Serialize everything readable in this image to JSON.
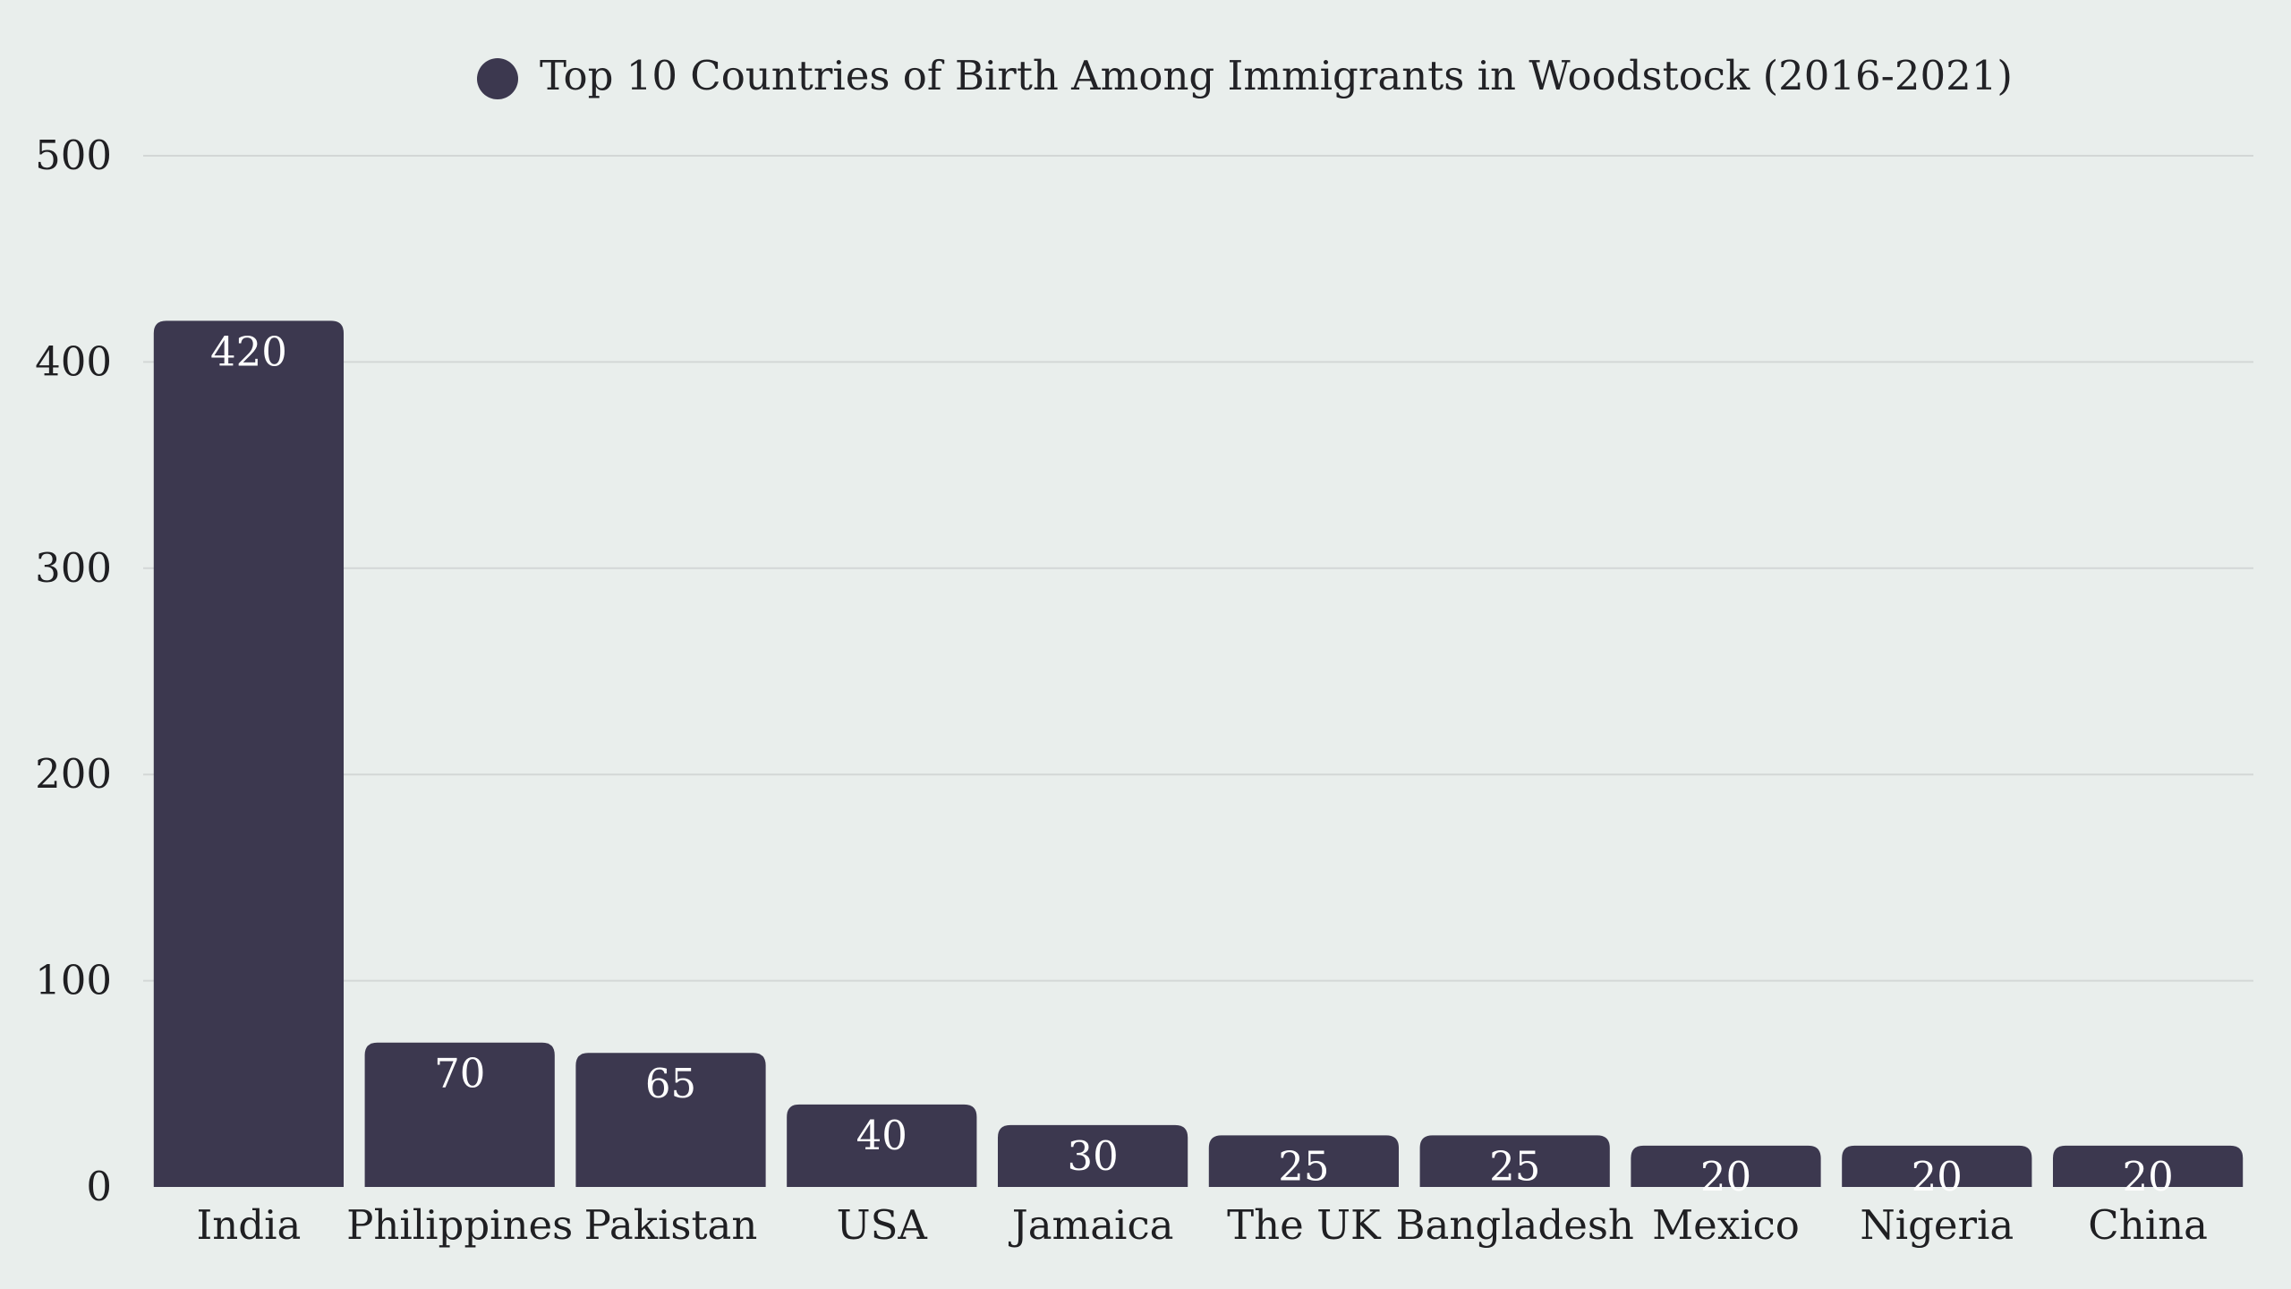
{
  "chart_data": {
    "type": "bar",
    "title": "",
    "xlabel": "",
    "ylabel": "",
    "categories": [
      "India",
      "Philippines",
      "Pakistan",
      "USA",
      "Jamaica",
      "The UK",
      "Bangladesh",
      "Mexico",
      "Nigeria",
      "China"
    ],
    "series": [
      {
        "name": "Top 10 Countries of Birth Among Immigrants in Woodstock (2016-2021)",
        "values": [
          420,
          70,
          65,
          40,
          30,
          25,
          25,
          20,
          20,
          20
        ],
        "color": "#3c384f"
      }
    ],
    "ylim": [
      0,
      500
    ],
    "yticks": [
      0,
      100,
      200,
      300,
      400,
      500
    ],
    "grid": true,
    "legend_position": "top-center",
    "data_labels": true
  },
  "colors": {
    "background": "#e9eeec",
    "bar": "#3c384f",
    "grid": "#d3d7d6",
    "text_dark": "#1f1f22",
    "label_light": "#ffffff"
  }
}
